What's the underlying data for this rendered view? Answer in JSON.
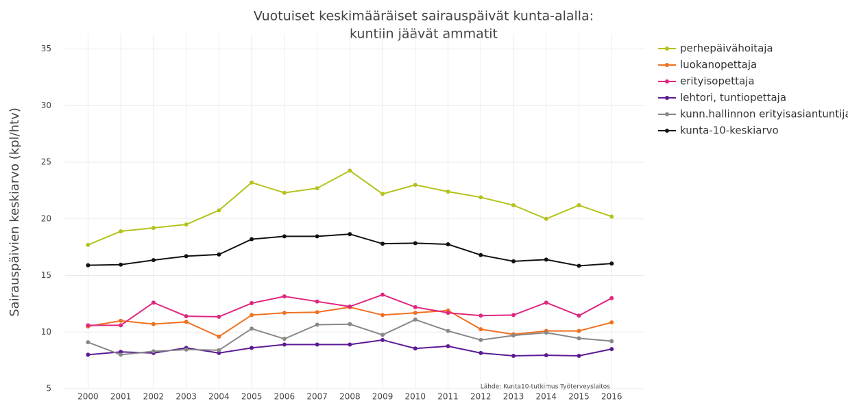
{
  "chart_data": {
    "type": "line",
    "title": [
      "Vuotuiset keskimääräiset sairauspäivät kunta-alalla:",
      "kuntiin jäävät ammatit"
    ],
    "y_label": "Sairauspäivien keskiarvo (kpl/htv)",
    "annotation": "Lähde: Kunta10-tutkimus Työterveyslaitos",
    "x": [
      2000,
      2001,
      2002,
      2003,
      2004,
      2005,
      2006,
      2007,
      2008,
      2009,
      2010,
      2011,
      2012,
      2013,
      2014,
      2015,
      2016
    ],
    "xlim": [
      1999.3,
      2017
    ],
    "xticks": [
      2000,
      2001,
      2002,
      2003,
      2004,
      2005,
      2006,
      2007,
      2008,
      2009,
      2010,
      2011,
      2012,
      2013,
      2014,
      2015,
      2016
    ],
    "ylim": [
      5,
      36.3
    ],
    "yticks": [
      5,
      10,
      15,
      20,
      25,
      30,
      35
    ],
    "grid": true,
    "legend": "right",
    "series": [
      {
        "name": "perhepäivähoitaja",
        "color": "#b5c21c",
        "values": [
          17.7,
          18.9,
          19.2,
          19.5,
          20.75,
          23.2,
          22.3,
          22.7,
          24.25,
          22.2,
          23.0,
          22.4,
          21.9,
          21.2,
          20.0,
          21.2,
          20.2
        ]
      },
      {
        "name": "luokanopettaja",
        "color": "#f07020",
        "values": [
          10.5,
          11.0,
          10.7,
          10.9,
          9.6,
          11.5,
          11.7,
          11.75,
          12.2,
          11.5,
          11.7,
          11.9,
          10.25,
          9.8,
          10.1,
          10.1,
          10.85
        ]
      },
      {
        "name": "erityisopettaja",
        "color": "#e0267e",
        "values": [
          10.6,
          10.6,
          12.6,
          11.4,
          11.35,
          12.55,
          13.15,
          12.7,
          12.25,
          13.3,
          12.2,
          11.7,
          11.45,
          11.5,
          12.6,
          11.45,
          13.0
        ]
      },
      {
        "name": "lehtori, tuntiopettaja",
        "color": "#5c1a94",
        "values": [
          8.0,
          8.25,
          8.15,
          8.6,
          8.15,
          8.6,
          8.9,
          8.9,
          8.9,
          9.3,
          8.55,
          8.75,
          8.15,
          7.9,
          7.95,
          7.9,
          8.5
        ]
      },
      {
        "name": "kunn.hallinnon erityisasiantuntija",
        "color": "#888888",
        "values": [
          9.1,
          8.0,
          8.3,
          8.45,
          8.4,
          10.3,
          9.4,
          10.65,
          10.7,
          9.75,
          11.1,
          10.1,
          9.3,
          9.7,
          9.95,
          9.45,
          9.2
        ]
      },
      {
        "name": "kunta-10-keskiarvo",
        "color": "#111111",
        "values": [
          15.9,
          15.95,
          16.35,
          16.7,
          16.85,
          18.2,
          18.45,
          18.45,
          18.65,
          17.8,
          17.85,
          17.75,
          16.8,
          16.25,
          16.4,
          15.85,
          16.05
        ]
      }
    ]
  }
}
